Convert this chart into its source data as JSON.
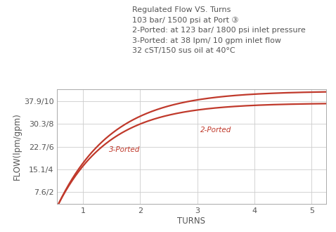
{
  "title_lines": [
    "Regulated Flow VS. Turns",
    "103 bar/ 1500 psi at Port ③",
    "2-Ported: at 123 bar/ 1800 psi inlet pressure",
    "3-Ported: at 38 lpm/ 10 gpm inlet flow",
    "32 cST/150 sus oil at 40°C"
  ],
  "xlabel": "TURNS",
  "ylabel": "FLOW(lpm/gpm)",
  "ytick_labels": [
    "7.6/2",
    "15.1/4",
    "22.7/6",
    "30.3/8",
    "37.9/10"
  ],
  "ytick_values": [
    7.6,
    15.1,
    22.7,
    30.3,
    37.9
  ],
  "xtick_values": [
    1,
    2,
    3,
    4,
    5
  ],
  "xlim": [
    0.55,
    5.25
  ],
  "ylim": [
    3.5,
    42.0
  ],
  "curve_color": "#c0392b",
  "background_color": "#ffffff",
  "grid_color": "#cccccc",
  "label_2ported": "2-Ported",
  "label_3ported": "3-Ported",
  "label_color": "#c0392b",
  "title_fontsize": 8.0,
  "tick_fontsize": 8.0,
  "label_fontsize": 8.5,
  "curve_2ported": {
    "plateau": 37.5,
    "x0": 0.58,
    "steepness": 1.05,
    "base": 3.8
  },
  "curve_3ported": {
    "plateau": 33.5,
    "x0": 0.58,
    "steepness": 1.1,
    "base": 3.8
  }
}
